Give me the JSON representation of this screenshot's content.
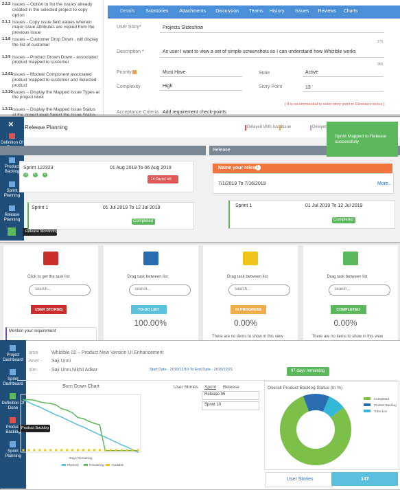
{
  "issue_list": [
    {
      "num": "2.2.2",
      "text": "Issues – Option to list the issues already created in the selected project to copy option"
    },
    {
      "num": "2.1.1",
      "text": "Issues - Copy issue field values wherein major issue attributes are copied from the previous issue"
    },
    {
      "num": "1.3.8",
      "text": "Issues – Customer Drop Down , will display the list of customer"
    },
    {
      "num": "1.3.9",
      "text": "Issues – Product Drown Down - associated product mapped to customer"
    },
    {
      "num": "1.2.61",
      "text": "Issues – Module Component associated product mapped to customer and Selected product"
    },
    {
      "num": "1.3.10",
      "text": "Issues – Display the Mapped Issue Types at the project level"
    },
    {
      "num": "1.3.11",
      "text": "Issues – Display the Mapped Issue Status at the project level Select the Issue Status under which the"
    }
  ],
  "form": {
    "tabs": [
      "Details",
      "Substories",
      "Attachments",
      "Discussion",
      "Teams",
      "History",
      "Issues",
      "Reviews",
      "Charts"
    ],
    "user_story_label": "User Story*",
    "user_story": "Projects Slideshow",
    "user_story_count": 176,
    "description_label": "Description *",
    "description": "As user  I want to view a set of simple screenshots  so I can understand how Whizible works",
    "description_count": 965,
    "priority_label": "Priority *",
    "priority": "Must Have",
    "state_label": "State",
    "state": "Active",
    "complexity_label": "Complexity",
    "complexity": "High",
    "story_point_label": "Story Point",
    "story_point": 13,
    "story_point_hint": "[ It is recommended to enter story point in Fibonacci series ]",
    "acceptance_label": "Acceptance Criteria",
    "acceptance": "Add requirement check-points"
  },
  "release_planning": {
    "sidebar": [
      "Definition Of Done",
      "Product Backlog",
      "Sprint Planning",
      "Release Planning"
    ],
    "close": "×",
    "tooltip": "Release Monitoring",
    "title": "Release Planning",
    "legend": [
      "Delayed With Issue",
      "Issue",
      "Delayed",
      "Com"
    ],
    "toast": "Sprint Mapped to Release successfully",
    "release_header": "Release",
    "sprint_card": {
      "name": "Sprint 122323",
      "dates": "01 Aug 2019 To 06 Aug 2019",
      "badges": [
        "0",
        "0",
        "0"
      ],
      "days_left": "14 Day(s) left"
    },
    "sprint_card2": {
      "name": "Sprint 1",
      "dates": "01 Jul 2019 To 12 Jul 2019",
      "status": "Completed"
    },
    "release": {
      "name": "Name your release",
      "count": "1",
      "dates": "7/1/2019 To 7/16/2019",
      "more": "More.."
    },
    "release_sprint": {
      "name": "Sprint 1",
      "dates": "01 Jul 2019 To 12 Jul 2019",
      "status": "Completed"
    }
  },
  "task_board": {
    "columns": [
      {
        "hint": "Click to get the task list",
        "search": "search...",
        "button": "USER STORIES",
        "color": "#c9302c"
      },
      {
        "hint": "Drag task between list",
        "search": "search...",
        "button": "TO-DO LIST",
        "color": "#5bc0de",
        "percent": "100.00%"
      },
      {
        "hint": "Drag task between list",
        "search": "search...",
        "button": "IN PROGRESS",
        "color": "#f0ad4e",
        "percent": "0.00%",
        "empty": "There are no items to show in this view"
      },
      {
        "hint": "Drag task between list",
        "search": "search...",
        "button": "COMPLETED",
        "color": "#5cb85c",
        "percent": "0.00%",
        "empty": "There are no items to show in this view"
      }
    ],
    "requirement": "Mention your requirement"
  },
  "dashboard": {
    "sidebar": [
      "Project Dashboard",
      "Sprint Dashboard",
      "Definition Of Done",
      "Product Backlog",
      "Sprint Planning"
    ],
    "tooltip": "Product Backlog",
    "name_label": "ame",
    "name": "Whizible 02 – Product New Version UI Enhancement",
    "owner_label": "wner -",
    "owner": "Saji Unni",
    "master_label": "ster",
    "master": "Saji Unni,Nikhil Adkar",
    "dates": "Start Date - 2019/12/10 To End Date - 2019/12/21",
    "remaining": "97 days remaining",
    "tabs": [
      "User Stories",
      "Sprint",
      "Release"
    ],
    "release_select": "Release 05",
    "sprint_select": "Sprint 10",
    "summary_label": "User Stories",
    "summary_value": 147
  },
  "chart_data": [
    {
      "type": "line",
      "title": "Burn Down Chart",
      "x_label": "Days Remaining",
      "ylim": [
        0,
        11
      ],
      "series": [
        {
          "name": "Planned",
          "color": "#5bc0de",
          "values": [
            10,
            9.5,
            9,
            8.6,
            8.1,
            7.6,
            7.1,
            6.7,
            6.2,
            5.7,
            5.2,
            4.8,
            4.3,
            3.8,
            3.3,
            2.9,
            2.4,
            1.9,
            1.4,
            1,
            0.5,
            0
          ]
        },
        {
          "name": "Remaining",
          "color": "#5cb85c",
          "values": [
            10,
            10,
            9.9,
            9.6,
            9.4,
            9.3,
            9,
            8.3,
            8,
            7.5,
            6.6,
            6.4,
            5.9,
            5.5,
            5.2,
            0.3,
            0.3,
            0.3,
            0.3,
            0.3,
            0.3,
            0.3
          ]
        },
        {
          "name": "Available",
          "color": "#f0c419",
          "values": [
            0.4,
            0.4,
            0.4,
            0.4,
            0.4,
            0.4,
            0.4,
            0.4,
            0.4,
            0.4,
            0.4,
            0.4,
            0.4,
            0.4,
            0.4,
            0.4,
            0.4,
            0.4,
            0.4,
            0.4,
            0.4,
            0.4
          ]
        }
      ]
    },
    {
      "type": "pie",
      "title": "Overall Product Backlog Status (In %)",
      "categories": [
        "Completed",
        "Product Backlog",
        "ToDo List"
      ],
      "colors": [
        "#7cc04a",
        "#2a6cb0",
        "#34b8d8"
      ],
      "values": [
        80,
        12,
        8
      ]
    }
  ]
}
